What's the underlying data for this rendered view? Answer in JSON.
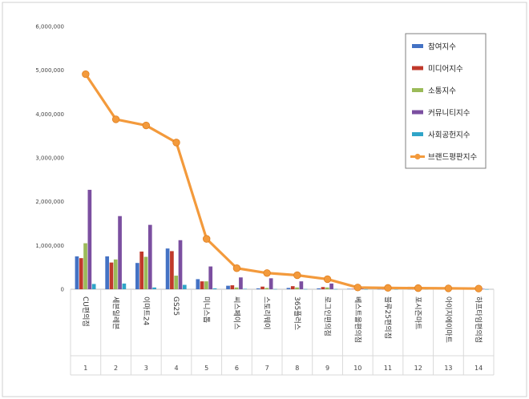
{
  "chart_data": {
    "type": "bar",
    "title": "",
    "xlabel": "",
    "ylabel": "",
    "ylim": [
      0,
      6000000
    ],
    "y_ticks": [
      "0",
      "1,000,000",
      "2,000,000",
      "3,000,000",
      "4,000,000",
      "5,000,000",
      "6,000,000"
    ],
    "y_tick_values": [
      0,
      1000000,
      2000000,
      3000000,
      4000000,
      5000000,
      6000000
    ],
    "categories": [
      "CU편의점",
      "세븐일레븐",
      "이마트24",
      "GS25",
      "미니스톱",
      "씨스페이스",
      "스토리웨이",
      "365플러스",
      "로그인편의점",
      "베스트올편의점",
      "블루25편의점",
      "포시즌마트",
      "아이지에이마트",
      "하프타임편의점"
    ],
    "ranks": [
      "1",
      "2",
      "3",
      "4",
      "5",
      "6",
      "7",
      "8",
      "9",
      "10",
      "11",
      "12",
      "13",
      "14"
    ],
    "series": [
      {
        "name": "참여지수",
        "color": "#4472c4",
        "kind": "bar",
        "values": [
          750000,
          750000,
          600000,
          930000,
          230000,
          80000,
          20000,
          30000,
          20000,
          10000,
          5000,
          5000,
          5000,
          5000
        ]
      },
      {
        "name": "미디어지수",
        "color": "#c0392b",
        "kind": "bar",
        "values": [
          710000,
          610000,
          860000,
          870000,
          180000,
          90000,
          60000,
          70000,
          50000,
          10000,
          5000,
          5000,
          5000,
          5000
        ]
      },
      {
        "name": "소통지수",
        "color": "#9bbb59",
        "kind": "bar",
        "values": [
          1050000,
          680000,
          740000,
          310000,
          180000,
          40000,
          30000,
          40000,
          40000,
          10000,
          5000,
          5000,
          5000,
          5000
        ]
      },
      {
        "name": "커뮤니티지수",
        "color": "#7b4fa0",
        "kind": "bar",
        "values": [
          2270000,
          1670000,
          1470000,
          1120000,
          520000,
          270000,
          250000,
          180000,
          130000,
          20000,
          10000,
          10000,
          10000,
          10000
        ]
      },
      {
        "name": "사회공헌지수",
        "color": "#2fa4c8",
        "kind": "bar",
        "values": [
          120000,
          130000,
          40000,
          100000,
          20000,
          10000,
          5000,
          5000,
          5000,
          2000,
          2000,
          2000,
          2000,
          2000
        ]
      },
      {
        "name": "브랜드평판지수",
        "color": "#f39a3c",
        "kind": "line",
        "values": [
          4910000,
          3880000,
          3740000,
          3350000,
          1150000,
          480000,
          370000,
          320000,
          230000,
          40000,
          30000,
          25000,
          20000,
          15000
        ]
      }
    ],
    "legend_position": "top-right",
    "grid": false
  }
}
